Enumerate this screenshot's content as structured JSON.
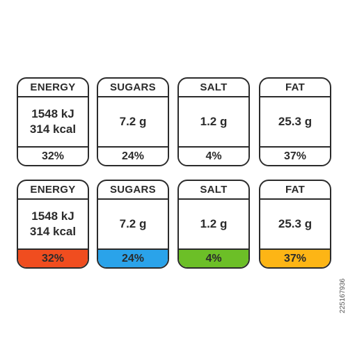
{
  "panels": [
    {
      "style": "outline",
      "labels": [
        {
          "name": "ENERGY",
          "amount_lines": [
            "1548 kJ",
            "314 kcal"
          ],
          "percent": "32%",
          "fill": "#ffffff"
        },
        {
          "name": "SUGARS",
          "amount_lines": [
            "7.2 g"
          ],
          "percent": "24%",
          "fill": "#ffffff"
        },
        {
          "name": "SALT",
          "amount_lines": [
            "1.2 g"
          ],
          "percent": "4%",
          "fill": "#ffffff"
        },
        {
          "name": "FAT",
          "amount_lines": [
            "25.3 g"
          ],
          "percent": "37%",
          "fill": "#ffffff"
        }
      ]
    },
    {
      "style": "colored",
      "labels": [
        {
          "name": "ENERGY",
          "amount_lines": [
            "1548 kJ",
            "314 kcal"
          ],
          "percent": "32%",
          "fill": "#f04d1f"
        },
        {
          "name": "SUGARS",
          "amount_lines": [
            "7.2 g"
          ],
          "percent": "24%",
          "fill": "#2aa3ea"
        },
        {
          "name": "SALT",
          "amount_lines": [
            "1.2 g"
          ],
          "percent": "4%",
          "fill": "#6cbf27"
        },
        {
          "name": "FAT",
          "amount_lines": [
            "25.3 g"
          ],
          "percent": "37%",
          "fill": "#fdb515"
        }
      ]
    }
  ],
  "stock_id": "225167936"
}
